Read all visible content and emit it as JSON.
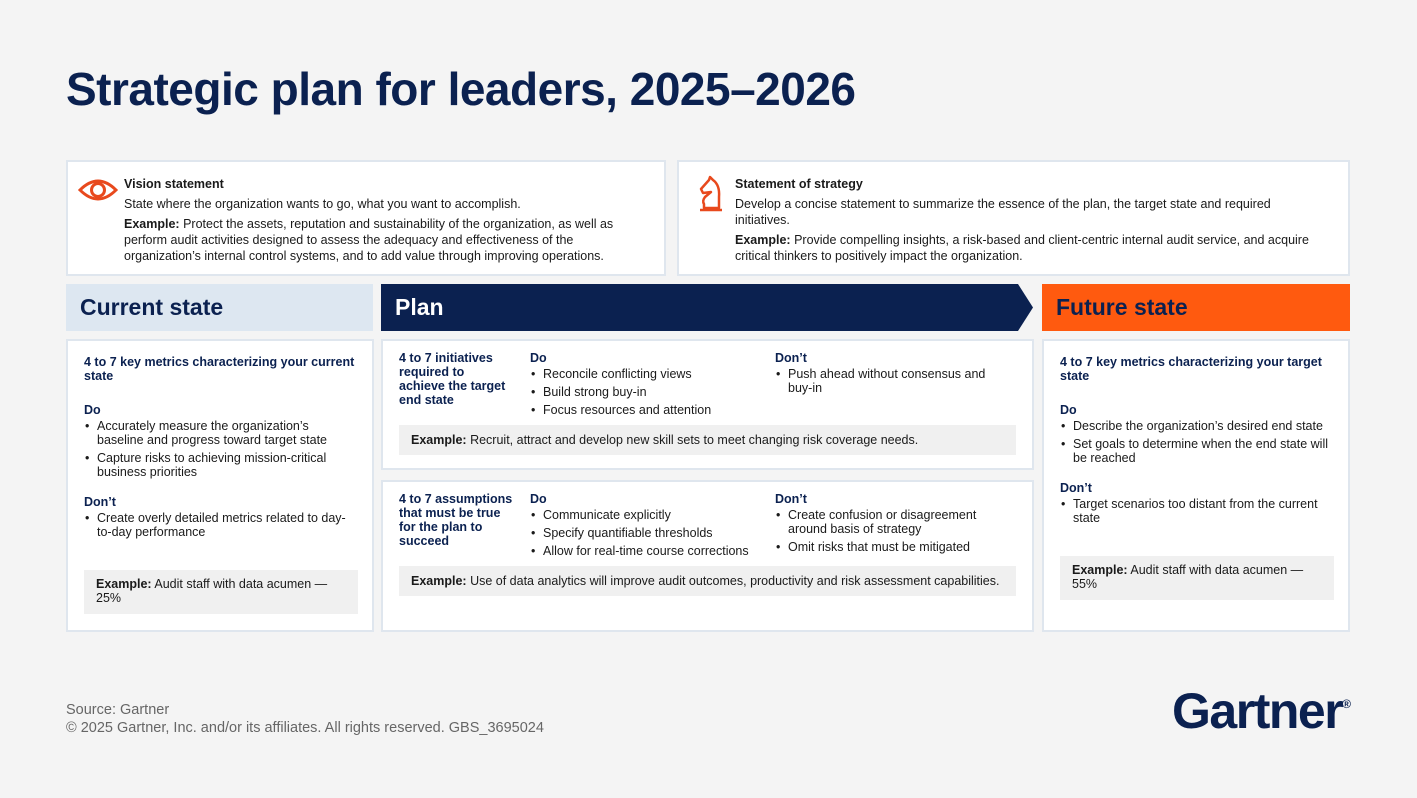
{
  "title": "Strategic plan for leaders, 2025–2026",
  "vision": {
    "icon": "eye-icon",
    "heading": "Vision statement",
    "body": "State where the organization wants to go, what you want to accomplish.",
    "example_label": "Example:",
    "example_text": "Protect the assets, reputation and sustainability of the organization, as well as perform audit activities designed to assess the adequacy and effectiveness of the organization’s internal control systems, and to add value through improving operations."
  },
  "strategy": {
    "icon": "chess-knight-icon",
    "heading": "Statement of strategy",
    "body": "Develop a concise statement to summarize the essence of the plan, the target state and required initiatives.",
    "example_label": "Example:",
    "example_text": "Provide compelling insights, a risk-based and client-centric internal audit service, and acquire critical thinkers to positively impact the organization."
  },
  "current_state": {
    "header": "Current state",
    "heading": "4 to 7 key metrics characterizing your current state",
    "do_label": "Do",
    "do_items": [
      "Accurately measure the organization’s baseline and progress toward target state",
      "Capture risks to achieving mission-critical business priorities"
    ],
    "dont_label": "Don’t",
    "dont_items": [
      "Create overly detailed metrics related to day-to-day performance"
    ],
    "example_label": "Example:",
    "example_text": "Audit staff with data acumen — 25%"
  },
  "plan": {
    "header": "Plan",
    "initiatives": {
      "heading": "4 to 7 initiatives required to achieve the target end state",
      "do_label": "Do",
      "do_items": [
        "Reconcile conflicting views",
        "Build strong buy-in",
        "Focus resources and attention"
      ],
      "dont_label": "Don’t",
      "dont_items": [
        "Push ahead without consensus and buy-in"
      ],
      "example_label": "Example:",
      "example_text": "Recruit, attract and develop new skill sets to meet changing risk coverage needs."
    },
    "assumptions": {
      "heading": "4 to 7 assumptions that must be true for the plan to succeed",
      "do_label": "Do",
      "do_items": [
        "Communicate explicitly",
        "Specify quantifiable thresholds",
        "Allow for real-time course corrections"
      ],
      "dont_label": "Don’t",
      "dont_items": [
        "Create confusion or disagreement around basis of strategy",
        "Omit risks that must be mitigated"
      ],
      "example_label": "Example:",
      "example_text": "Use of data analytics will improve audit outcomes, productivity and risk assessment capabilities."
    }
  },
  "future_state": {
    "header": "Future state",
    "heading": "4 to 7 key metrics characterizing your target state",
    "do_label": "Do",
    "do_items": [
      "Describe the organization’s desired end state",
      "Set goals to determine when the end state will be reached"
    ],
    "dont_label": "Don’t",
    "dont_items": [
      "Target scenarios too distant from the current state"
    ],
    "example_label": "Example:",
    "example_text": "Audit staff with data acumen — 55%"
  },
  "footer": {
    "source": "Source: Gartner",
    "copyright": "© 2025 Gartner, Inc. and/or its affiliates. All rights reserved. GBS_3695024"
  },
  "logo": {
    "text": "Gartner",
    "mark": "®"
  },
  "colors": {
    "navy": "#0b2150",
    "orange": "#ff5a0f",
    "light_blue": "#dde7f1",
    "icon_orange": "#e8491d"
  }
}
